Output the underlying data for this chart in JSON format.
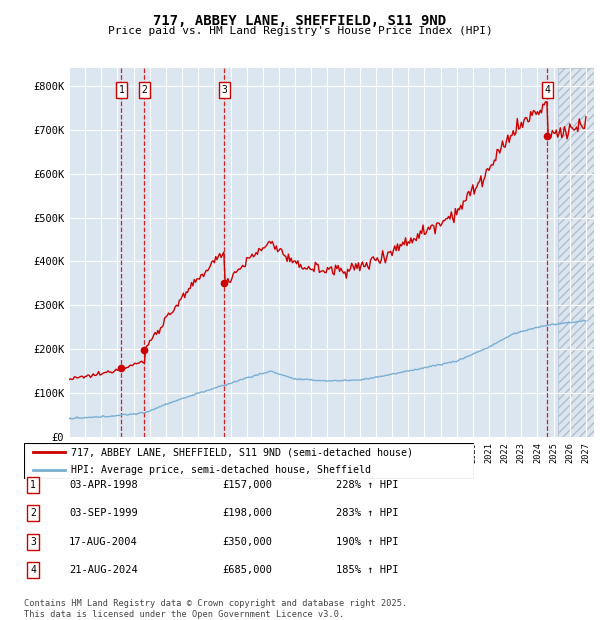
{
  "title": "717, ABBEY LANE, SHEFFIELD, S11 9ND",
  "subtitle": "Price paid vs. HM Land Registry's House Price Index (HPI)",
  "ylabel_ticks": [
    "£0",
    "£100K",
    "£200K",
    "£300K",
    "£400K",
    "£500K",
    "£600K",
    "£700K",
    "£800K"
  ],
  "ytick_values": [
    0,
    100000,
    200000,
    300000,
    400000,
    500000,
    600000,
    700000,
    800000
  ],
  "ylim": [
    0,
    840000
  ],
  "xlim_start": 1995.0,
  "xlim_end": 2027.5,
  "hatch_start": 2025.3,
  "sales": [
    {
      "num": 1,
      "date": "03-APR-1998",
      "year": 1998.25,
      "price": 157000,
      "pct": "228%",
      "dir": "↑"
    },
    {
      "num": 2,
      "date": "03-SEP-1999",
      "year": 1999.67,
      "price": 198000,
      "pct": "283%",
      "dir": "↑"
    },
    {
      "num": 3,
      "date": "17-AUG-2004",
      "year": 2004.62,
      "price": 350000,
      "pct": "190%",
      "dir": "↑"
    },
    {
      "num": 4,
      "date": "21-AUG-2024",
      "year": 2024.62,
      "price": 685000,
      "pct": "185%",
      "dir": "↑"
    }
  ],
  "legend_red": "717, ABBEY LANE, SHEFFIELD, S11 9ND (semi-detached house)",
  "legend_blue": "HPI: Average price, semi-detached house, Sheffield",
  "footnote": "Contains HM Land Registry data © Crown copyright and database right 2025.\nThis data is licensed under the Open Government Licence v3.0.",
  "bg_color": "#dce6f1",
  "grid_color": "#ffffff",
  "red_line_color": "#cc0000",
  "blue_line_color": "#7bafd4"
}
